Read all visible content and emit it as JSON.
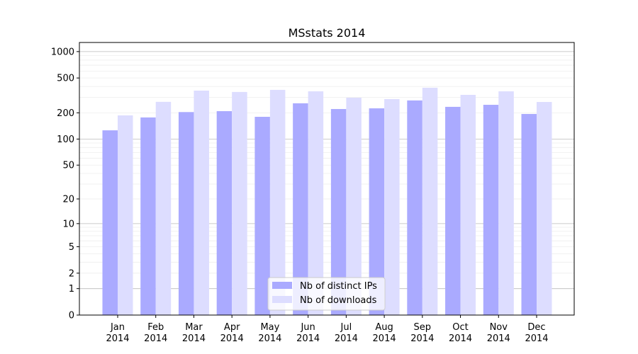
{
  "chart_data": {
    "type": "bar",
    "title": "MSstats 2014",
    "xlabel": "",
    "ylabel": "",
    "yscale": "log(1+y)",
    "ylim": [
      0,
      1270
    ],
    "yticks": [
      0,
      1,
      2,
      5,
      10,
      20,
      50,
      100,
      200,
      500,
      1000
    ],
    "ytick_labels": [
      "0",
      "1",
      "2",
      "5",
      "10",
      "20",
      "50",
      "100",
      "200",
      "500",
      "1000"
    ],
    "grid": true,
    "legend_position": "bottom-center",
    "categories": [
      "Jan\n2014",
      "Feb\n2014",
      "Mar\n2014",
      "Apr\n2014",
      "May\n2014",
      "Jun\n2014",
      "Jul\n2014",
      "Aug\n2014",
      "Sep\n2014",
      "Oct\n2014",
      "Nov\n2014",
      "Dec\n2014"
    ],
    "series": [
      {
        "name": "Nb of distinct IPs",
        "color": "#aaaaff",
        "values": [
          126,
          177,
          204,
          209,
          180,
          257,
          221,
          225,
          277,
          234,
          247,
          194
        ]
      },
      {
        "name": "Nb of downloads",
        "color": "#ddddff",
        "values": [
          187,
          267,
          359,
          346,
          366,
          352,
          298,
          287,
          387,
          321,
          352,
          266
        ]
      }
    ]
  }
}
